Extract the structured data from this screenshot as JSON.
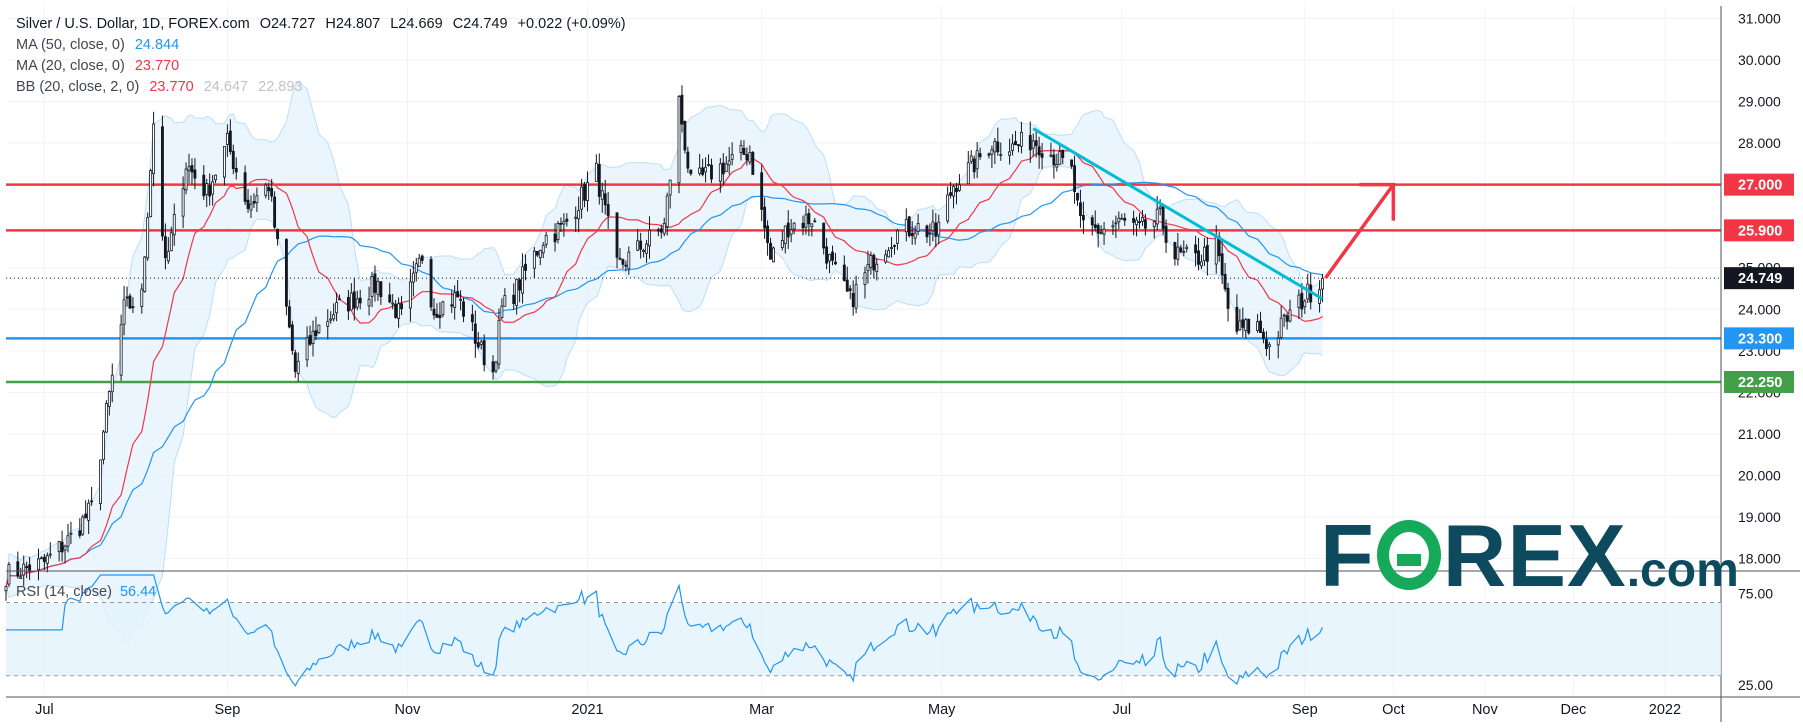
{
  "header": {
    "symbol": "Silver / U.S. Dollar, 1D, FOREX.com",
    "open": "O24.727",
    "high": "H24.807",
    "low": "L24.669",
    "close": "C24.749",
    "change": "+0.022 (+0.09%)"
  },
  "indicators": {
    "ma50": {
      "label": "MA (50, close, 0)",
      "value": "24.844",
      "color": "#2196f3"
    },
    "ma20": {
      "label": "MA (20, close, 0)",
      "value": "23.770",
      "color": "#f23645"
    },
    "bb": {
      "label": "BB (20, close, 2, 0)",
      "basis": "23.770",
      "upper": "24.647",
      "lower": "22.893",
      "basis_color": "#f23645",
      "band_color": "#b2b5be"
    },
    "rsi": {
      "label": "RSI (14, close)",
      "value": "56.44",
      "color": "#2196f3"
    }
  },
  "logo": {
    "part1": "F",
    "part2": "REX",
    "part3": ".com"
  },
  "colors": {
    "resistance": "#f23645",
    "support_blue": "#2196f3",
    "support_green": "#43a047",
    "trendline": "#00bcd4",
    "arrow": "#f23645",
    "candle": "#131722",
    "band_fill": "#e3f2fd"
  },
  "chart_data": {
    "type": "candlestick",
    "title": "Silver / U.S. Dollar, 1D, FOREX.com",
    "y_ticks": [
      "31.000",
      "30.000",
      "29.000",
      "28.000",
      "27.000",
      "25.000",
      "24.000",
      "23.000",
      "22.000",
      "21.000",
      "20.000",
      "19.000",
      "18.000"
    ],
    "ylim": [
      17.7,
      31.3
    ],
    "x_ticks": [
      "Jul",
      "Sep",
      "Nov",
      "2021",
      "Mar",
      "May",
      "Jul",
      "Sep",
      "Oct",
      "Nov",
      "Dec",
      "2022"
    ],
    "x_tick_dates": [
      "2020-07-01",
      "2020-09-01",
      "2020-11-01",
      "2021-01-01",
      "2021-03-01",
      "2021-05-01",
      "2021-07-01",
      "2021-09-01",
      "2021-10-01",
      "2021-11-01",
      "2021-12-01",
      "2022-01-01"
    ],
    "x_range": [
      "2020-06-18",
      "2022-01-20"
    ],
    "last_price": "24.749",
    "horizontal_levels": [
      {
        "value": 27.0,
        "label": "27.000",
        "color": "#f23645"
      },
      {
        "value": 25.9,
        "label": "25.900",
        "color": "#f23645"
      },
      {
        "value": 23.3,
        "label": "23.300",
        "color": "#2196f3"
      },
      {
        "value": 22.25,
        "label": "22.250",
        "color": "#43a047"
      }
    ],
    "trendline": {
      "start": [
        "2021-06-01",
        28.35
      ],
      "end": [
        "2021-09-07",
        24.25
      ]
    },
    "projection_arrow": {
      "start": [
        "2021-09-08",
        24.75
      ],
      "end": [
        "2021-10-01",
        27.0
      ]
    },
    "price_path": [
      [
        "2020-06-18",
        17.6
      ],
      [
        "2020-07-01",
        17.9
      ],
      [
        "2020-07-10",
        18.5
      ],
      [
        "2020-07-17",
        19.2
      ],
      [
        "2020-07-22",
        21.5
      ],
      [
        "2020-07-28",
        24.0
      ],
      [
        "2020-08-03",
        24.3
      ],
      [
        "2020-08-07",
        28.5
      ],
      [
        "2020-08-11",
        25.0
      ],
      [
        "2020-08-18",
        27.5
      ],
      [
        "2020-08-25",
        26.8
      ],
      [
        "2020-09-01",
        28.0
      ],
      [
        "2020-09-08",
        26.5
      ],
      [
        "2020-09-15",
        27.0
      ],
      [
        "2020-09-21",
        24.0
      ],
      [
        "2020-09-24",
        22.5
      ],
      [
        "2020-10-01",
        23.5
      ],
      [
        "2020-10-08",
        24.0
      ],
      [
        "2020-10-15",
        24.3
      ],
      [
        "2020-10-22",
        24.6
      ],
      [
        "2020-10-30",
        23.8
      ],
      [
        "2020-11-06",
        25.3
      ],
      [
        "2020-11-10",
        24.0
      ],
      [
        "2020-11-18",
        24.3
      ],
      [
        "2020-11-26",
        23.0
      ],
      [
        "2020-11-30",
        22.5
      ],
      [
        "2020-12-03",
        24.0
      ],
      [
        "2020-12-08",
        24.5
      ],
      [
        "2020-12-17",
        25.7
      ],
      [
        "2020-12-24",
        26.0
      ],
      [
        "2021-01-04",
        27.3
      ],
      [
        "2021-01-11",
        25.0
      ],
      [
        "2021-01-19",
        25.5
      ],
      [
        "2021-01-27",
        26.0
      ],
      [
        "2021-02-01",
        29.0
      ],
      [
        "2021-02-05",
        27.0
      ],
      [
        "2021-02-12",
        27.3
      ],
      [
        "2021-02-22",
        27.7
      ],
      [
        "2021-02-25",
        27.8
      ],
      [
        "2021-03-04",
        25.2
      ],
      [
        "2021-03-10",
        26.0
      ],
      [
        "2021-03-18",
        26.2
      ],
      [
        "2021-03-25",
        25.0
      ],
      [
        "2021-03-31",
        24.2
      ],
      [
        "2021-04-08",
        25.2
      ],
      [
        "2021-04-15",
        25.8
      ],
      [
        "2021-04-22",
        26.0
      ],
      [
        "2021-04-29",
        25.8
      ],
      [
        "2021-05-05",
        27.0
      ],
      [
        "2021-05-12",
        27.5
      ],
      [
        "2021-05-18",
        28.0
      ],
      [
        "2021-05-25",
        27.9
      ],
      [
        "2021-06-01",
        28.1
      ],
      [
        "2021-06-08",
        27.7
      ],
      [
        "2021-06-14",
        27.3
      ],
      [
        "2021-06-17",
        26.0
      ],
      [
        "2021-06-24",
        25.9
      ],
      [
        "2021-07-01",
        26.1
      ],
      [
        "2021-07-07",
        25.9
      ],
      [
        "2021-07-14",
        26.2
      ],
      [
        "2021-07-19",
        25.3
      ],
      [
        "2021-07-26",
        25.2
      ],
      [
        "2021-08-02",
        25.5
      ],
      [
        "2021-08-06",
        24.0
      ],
      [
        "2021-08-09",
        23.5
      ],
      [
        "2021-08-16",
        23.6
      ],
      [
        "2021-08-20",
        23.1
      ],
      [
        "2021-08-26",
        23.8
      ],
      [
        "2021-09-01",
        24.3
      ],
      [
        "2021-09-07",
        24.75
      ]
    ],
    "rsi_ticks": [
      "75.00",
      "25.00"
    ],
    "rsi_levels": [
      70,
      30
    ],
    "rsi_ylim": [
      20,
      85
    ],
    "rsi_last": 56.44
  }
}
